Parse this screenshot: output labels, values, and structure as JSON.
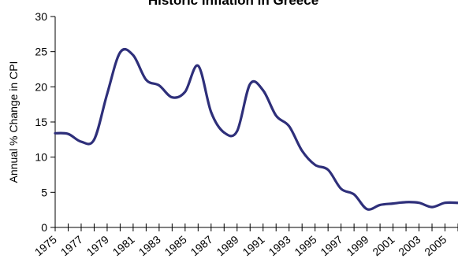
{
  "chart_data": {
    "type": "line",
    "title": "Historic Inflation in Greece",
    "xlabel": "",
    "ylabel": "Annual % Change in CPI",
    "ylim": [
      0,
      30
    ],
    "xlim": [
      1975,
      2006
    ],
    "y_ticks": [
      "0",
      "5",
      "10",
      "15",
      "20",
      "25",
      "30"
    ],
    "x_tick_labels": [
      "1975",
      "1977",
      "1979",
      "1981",
      "1983",
      "1985",
      "1987",
      "1989",
      "1991",
      "1993",
      "1995",
      "1997",
      "1999",
      "2001",
      "2003",
      "2005"
    ],
    "grid": false,
    "legend": "none",
    "series_color": "#2e2f7a",
    "x": [
      1975,
      1976,
      1977,
      1978,
      1979,
      1980,
      1981,
      1982,
      1983,
      1984,
      1985,
      1986,
      1987,
      1988,
      1989,
      1990,
      1991,
      1992,
      1993,
      1994,
      1995,
      1996,
      1997,
      1998,
      1999,
      2000,
      2001,
      2002,
      2003,
      2004,
      2005,
      2006
    ],
    "values": [
      13.4,
      13.3,
      12.2,
      12.5,
      19.0,
      24.9,
      24.5,
      21.0,
      20.2,
      18.5,
      19.3,
      23.0,
      16.4,
      13.5,
      13.7,
      20.4,
      19.5,
      15.9,
      14.4,
      10.9,
      8.9,
      8.2,
      5.5,
      4.7,
      2.6,
      3.2,
      3.4,
      3.6,
      3.5,
      2.9,
      3.5,
      3.5
    ]
  }
}
